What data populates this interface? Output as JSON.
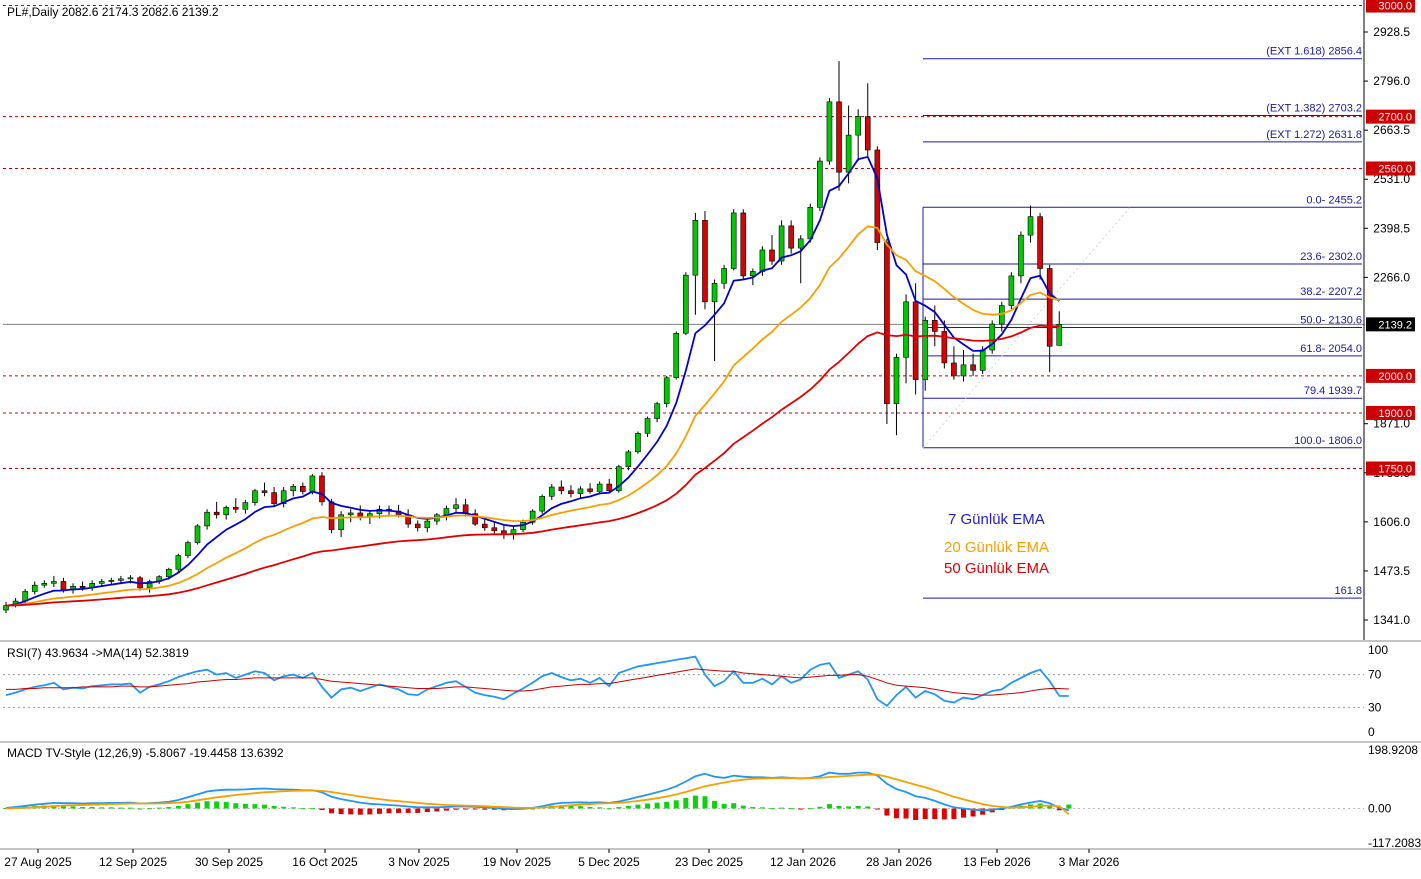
{
  "symbol_header": "PL#,Daily  2082.6 2174.3 2082.6 2139.2",
  "colors": {
    "bull": "#00c800",
    "bear": "#d80000",
    "ema7": "#0000d0",
    "ema20": "#f5a000",
    "ema50": "#e00000",
    "fib": "#1a1aa0",
    "level": "#cc0000",
    "rsi": "#2196f3",
    "rsi_ma": "#cc0000",
    "macd": "#2196f3",
    "signal": "#f5a000"
  },
  "chart_data": {
    "type": "candlestick",
    "price_axis": {
      "ylim": [
        1300,
        3000
      ],
      "ticks": [
        "2928.5",
        "2796.0",
        "2663.5",
        "2531.0",
        "2398.5",
        "2266.0",
        "1871.0",
        "1738.5",
        "1606.0",
        "1473.5",
        "1341.0"
      ]
    },
    "current_price": "2139.2",
    "x_labels": [
      "27 Aug 2025",
      "12 Sep 2025",
      "30 Sep 2025",
      "16 Oct 2025",
      "3 Nov 2025",
      "19 Nov 2025",
      "5 Dec 2025",
      "23 Dec 2025",
      "12 Jan 2026",
      "28 Jan 2026",
      "13 Feb 2026",
      "3 Mar 2026"
    ],
    "candles_ohlc": [
      [
        1368,
        1390,
        1360,
        1380
      ],
      [
        1380,
        1400,
        1375,
        1392
      ],
      [
        1392,
        1425,
        1385,
        1418
      ],
      [
        1418,
        1445,
        1410,
        1435
      ],
      [
        1435,
        1448,
        1428,
        1440
      ],
      [
        1440,
        1460,
        1430,
        1445
      ],
      [
        1445,
        1455,
        1415,
        1422
      ],
      [
        1422,
        1440,
        1412,
        1432
      ],
      [
        1432,
        1445,
        1420,
        1428
      ],
      [
        1428,
        1448,
        1420,
        1440
      ],
      [
        1440,
        1452,
        1432,
        1445
      ],
      [
        1445,
        1455,
        1435,
        1448
      ],
      [
        1448,
        1460,
        1438,
        1452
      ],
      [
        1452,
        1462,
        1440,
        1455
      ],
      [
        1455,
        1460,
        1420,
        1428
      ],
      [
        1428,
        1450,
        1415,
        1445
      ],
      [
        1445,
        1462,
        1438,
        1458
      ],
      [
        1458,
        1482,
        1450,
        1478
      ],
      [
        1478,
        1520,
        1470,
        1515
      ],
      [
        1515,
        1555,
        1508,
        1550
      ],
      [
        1550,
        1600,
        1545,
        1595
      ],
      [
        1595,
        1640,
        1585,
        1632
      ],
      [
        1632,
        1660,
        1615,
        1625
      ],
      [
        1625,
        1650,
        1612,
        1645
      ],
      [
        1645,
        1670,
        1630,
        1640
      ],
      [
        1640,
        1665,
        1628,
        1658
      ],
      [
        1658,
        1695,
        1650,
        1690
      ],
      [
        1690,
        1712,
        1675,
        1685
      ],
      [
        1685,
        1700,
        1648,
        1655
      ],
      [
        1655,
        1700,
        1645,
        1690
      ],
      [
        1690,
        1708,
        1675,
        1702
      ],
      [
        1702,
        1712,
        1680,
        1688
      ],
      [
        1688,
        1735,
        1680,
        1730
      ],
      [
        1730,
        1740,
        1650,
        1660
      ],
      [
        1660,
        1668,
        1575,
        1585
      ],
      [
        1585,
        1635,
        1565,
        1625
      ],
      [
        1625,
        1640,
        1605,
        1630
      ],
      [
        1630,
        1650,
        1610,
        1620
      ],
      [
        1620,
        1638,
        1600,
        1628
      ],
      [
        1628,
        1650,
        1615,
        1640
      ],
      [
        1640,
        1650,
        1620,
        1635
      ],
      [
        1635,
        1652,
        1618,
        1625
      ],
      [
        1625,
        1640,
        1590,
        1600
      ],
      [
        1600,
        1610,
        1580,
        1590
      ],
      [
        1590,
        1615,
        1578,
        1608
      ],
      [
        1608,
        1630,
        1598,
        1625
      ],
      [
        1625,
        1650,
        1610,
        1642
      ],
      [
        1642,
        1670,
        1630,
        1652
      ],
      [
        1652,
        1668,
        1620,
        1628
      ],
      [
        1628,
        1640,
        1595,
        1600
      ],
      [
        1600,
        1615,
        1582,
        1590
      ],
      [
        1590,
        1605,
        1570,
        1582
      ],
      [
        1582,
        1598,
        1560,
        1572
      ],
      [
        1572,
        1592,
        1558,
        1585
      ],
      [
        1585,
        1612,
        1578,
        1605
      ],
      [
        1605,
        1640,
        1598,
        1635
      ],
      [
        1635,
        1680,
        1628,
        1675
      ],
      [
        1675,
        1708,
        1665,
        1700
      ],
      [
        1700,
        1718,
        1680,
        1690
      ],
      [
        1690,
        1705,
        1672,
        1682
      ],
      [
        1682,
        1702,
        1670,
        1695
      ],
      [
        1695,
        1710,
        1682,
        1688
      ],
      [
        1688,
        1715,
        1680,
        1708
      ],
      [
        1708,
        1722,
        1685,
        1690
      ],
      [
        1690,
        1760,
        1685,
        1755
      ],
      [
        1755,
        1800,
        1745,
        1795
      ],
      [
        1795,
        1850,
        1790,
        1845
      ],
      [
        1845,
        1890,
        1835,
        1885
      ],
      [
        1885,
        1930,
        1875,
        1925
      ],
      [
        1925,
        2000,
        1915,
        1995
      ],
      [
        1995,
        2120,
        1990,
        2115
      ],
      [
        2115,
        2280,
        2110,
        2272
      ],
      [
        2272,
        2440,
        2165,
        2420
      ],
      [
        2420,
        2445,
        2180,
        2200
      ],
      [
        2200,
        2260,
        2040,
        2250
      ],
      [
        2250,
        2300,
        2235,
        2290
      ],
      [
        2290,
        2450,
        2285,
        2440
      ],
      [
        2440,
        2450,
        2260,
        2270
      ],
      [
        2270,
        2290,
        2245,
        2282
      ],
      [
        2282,
        2350,
        2270,
        2340
      ],
      [
        2340,
        2380,
        2300,
        2310
      ],
      [
        2310,
        2420,
        2300,
        2405
      ],
      [
        2405,
        2420,
        2330,
        2345
      ],
      [
        2345,
        2380,
        2250,
        2370
      ],
      [
        2370,
        2465,
        2360,
        2455
      ],
      [
        2455,
        2590,
        2445,
        2580
      ],
      [
        2580,
        2750,
        2570,
        2740
      ],
      [
        2740,
        2850,
        2500,
        2550
      ],
      [
        2550,
        2730,
        2520,
        2650
      ],
      [
        2650,
        2720,
        2580,
        2700
      ],
      [
        2700,
        2790,
        2590,
        2610
      ],
      [
        2610,
        2620,
        2340,
        2360
      ],
      [
        2360,
        2370,
        1870,
        1925
      ],
      [
        1925,
        2060,
        1840,
        2050
      ],
      [
        2050,
        2220,
        1980,
        2200
      ],
      [
        2200,
        2250,
        1950,
        1990
      ],
      [
        1990,
        2160,
        1960,
        2150
      ],
      [
        2150,
        2190,
        2080,
        2120
      ],
      [
        2120,
        2150,
        2020,
        2035
      ],
      [
        2035,
        2080,
        1990,
        2000
      ],
      [
        2000,
        2070,
        1985,
        2030
      ],
      [
        2030,
        2060,
        2000,
        2015
      ],
      [
        2015,
        2080,
        2005,
        2070
      ],
      [
        2070,
        2150,
        2060,
        2140
      ],
      [
        2140,
        2200,
        2120,
        2190
      ],
      [
        2190,
        2280,
        2180,
        2270
      ],
      [
        2270,
        2390,
        2250,
        2380
      ],
      [
        2380,
        2460,
        2360,
        2430
      ],
      [
        2430,
        2440,
        2260,
        2290
      ],
      [
        2290,
        2300,
        2010,
        2080
      ],
      [
        2082.6,
        2174.3,
        2082.6,
        2139.2
      ]
    ],
    "series": [
      {
        "name": "7 Günlük EMA",
        "color": "#0000d0"
      },
      {
        "name": "20 Günlük EMA",
        "color": "#f5a000"
      },
      {
        "name": "50 Günlük EMA",
        "color": "#e00000"
      }
    ],
    "horizontal_levels": [
      {
        "price": 3000.0,
        "label": "3000.0"
      },
      {
        "price": 2700.0,
        "label": "2700.0"
      },
      {
        "price": 2560.0,
        "label": "2560.0"
      },
      {
        "price": 2000.0,
        "label": "2000.0"
      },
      {
        "price": 1900.0,
        "label": "1900.0"
      },
      {
        "price": 1750.0,
        "label": "1750.0"
      }
    ],
    "fib_levels": [
      {
        "price": 2856.4,
        "label": "(EXT 1.618)  2856.4"
      },
      {
        "price": 2703.2,
        "label": "(EXT 1.382)  2703.2"
      },
      {
        "price": 2631.8,
        "label": "(EXT 1.272)  2631.8"
      },
      {
        "price": 2455.2,
        "label": "0.0- 2455.2"
      },
      {
        "price": 2302.0,
        "label": "23.6- 2302.0"
      },
      {
        "price": 2207.2,
        "label": "38.2- 2207.2"
      },
      {
        "price": 2130.6,
        "label": "50.0- 2130.6"
      },
      {
        "price": 2054.0,
        "label": "61.8- 2054.0"
      },
      {
        "price": 1939.7,
        "label": "79.4 1939.7"
      },
      {
        "price": 1806.0,
        "label": "100.0- 1806.0"
      },
      {
        "price": 1400.0,
        "label": "161.8"
      }
    ],
    "rsi": {
      "header": "RSI(7) 43.9634  ->MA(14) 52.3819",
      "levels": [
        "100",
        "70",
        "30",
        "0"
      ],
      "values": [
        45,
        48,
        52,
        55,
        57,
        60,
        52,
        54,
        53,
        56,
        57,
        58,
        58,
        59,
        48,
        55,
        58,
        62,
        67,
        71,
        74,
        76,
        70,
        72,
        66,
        70,
        74,
        72,
        63,
        68,
        70,
        66,
        72,
        55,
        42,
        52,
        54,
        50,
        54,
        58,
        55,
        52,
        46,
        45,
        52,
        56,
        60,
        62,
        55,
        48,
        45,
        43,
        40,
        47,
        53,
        60,
        68,
        72,
        67,
        63,
        65,
        60,
        66,
        56,
        72,
        76,
        80,
        82,
        84,
        86,
        88,
        90,
        92,
        70,
        56,
        62,
        74,
        60,
        60,
        65,
        58,
        68,
        60,
        64,
        76,
        82,
        84,
        66,
        70,
        74,
        64,
        40,
        32,
        45,
        55,
        42,
        50,
        46,
        38,
        36,
        42,
        40,
        45,
        50,
        52,
        60,
        66,
        72,
        76,
        62,
        44,
        43.96
      ],
      "ma_values": [
        52,
        52,
        53,
        53,
        54,
        54,
        54,
        54,
        55,
        55,
        55,
        55,
        56,
        56,
        55,
        55,
        56,
        57,
        58,
        59,
        61,
        62,
        63,
        64,
        64,
        65,
        66,
        66,
        66,
        66,
        66,
        66,
        66,
        64,
        62,
        61,
        60,
        59,
        58,
        57,
        56,
        55,
        54,
        53,
        53,
        53,
        54,
        55,
        55,
        54,
        53,
        52,
        51,
        50,
        50,
        51,
        53,
        55,
        56,
        57,
        58,
        58,
        59,
        59,
        61,
        63,
        65,
        67,
        69,
        71,
        73,
        75,
        77,
        76,
        75,
        74,
        74,
        72,
        71,
        70,
        69,
        68,
        67,
        66,
        67,
        68,
        69,
        69,
        70,
        70,
        68,
        64,
        60,
        57,
        56,
        55,
        54,
        52,
        50,
        48,
        47,
        46,
        45,
        45,
        46,
        47,
        48,
        50,
        52,
        53,
        53,
        52.38
      ]
    },
    "macd": {
      "header": "MACD TV-Style (12,26,9) -5.8067 -19.4458 13.6392",
      "ticks": [
        "198.9208",
        "0.00",
        "-117.2083"
      ],
      "ylim": [
        -117.2083,
        198.9208
      ],
      "macd_values": [
        2,
        5,
        9,
        13,
        16,
        19,
        18,
        18,
        17,
        18,
        18,
        19,
        19,
        20,
        17,
        18,
        20,
        23,
        29,
        38,
        48,
        58,
        62,
        64,
        64,
        65,
        67,
        68,
        66,
        65,
        64,
        62,
        62,
        55,
        40,
        32,
        26,
        20,
        16,
        14,
        12,
        10,
        7,
        4,
        4,
        4,
        5,
        7,
        7,
        6,
        4,
        2,
        -1,
        -2,
        -1,
        2,
        8,
        15,
        19,
        20,
        21,
        20,
        21,
        19,
        24,
        31,
        39,
        47,
        55,
        64,
        76,
        92,
        110,
        118,
        108,
        104,
        112,
        108,
        106,
        106,
        104,
        106,
        104,
        102,
        104,
        110,
        122,
        118,
        118,
        122,
        122,
        112,
        84,
        66,
        56,
        42,
        36,
        26,
        14,
        4,
        0,
        -4,
        -6,
        -4,
        0,
        6,
        14,
        20,
        26,
        18,
        2,
        -5.81
      ],
      "signal_values": [
        0,
        1,
        2,
        4,
        6,
        8,
        10,
        11,
        12,
        13,
        14,
        15,
        16,
        17,
        17,
        17,
        17,
        18,
        20,
        23,
        28,
        33,
        38,
        42,
        46,
        49,
        52,
        55,
        57,
        59,
        60,
        61,
        61,
        60,
        56,
        51,
        46,
        41,
        36,
        32,
        28,
        25,
        22,
        19,
        16,
        14,
        12,
        11,
        10,
        9,
        8,
        6,
        5,
        3,
        2,
        2,
        3,
        5,
        8,
        11,
        13,
        15,
        17,
        18,
        19,
        22,
        26,
        30,
        35,
        41,
        48,
        56,
        66,
        76,
        82,
        88,
        94,
        98,
        101,
        102,
        103,
        103,
        103,
        103,
        103,
        104,
        107,
        109,
        111,
        113,
        115,
        115,
        108,
        99,
        90,
        81,
        72,
        62,
        51,
        40,
        31,
        23,
        15,
        9,
        5,
        3,
        4,
        6,
        9,
        10,
        8,
        -19.45
      ]
    }
  },
  "legend": {
    "ema7": "7 Günlük EMA",
    "ema20": "20 Günlük EMA",
    "ema50": "50 Günlük EMA"
  }
}
